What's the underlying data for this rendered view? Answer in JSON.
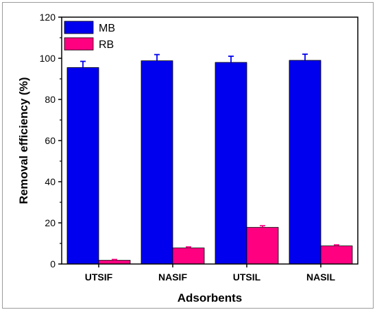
{
  "chart_data": {
    "type": "bar",
    "categories": [
      "UTSIF",
      "NASIF",
      "UTSIL",
      "NASIL"
    ],
    "series": [
      {
        "name": "MB",
        "color": "#0000ee",
        "values": [
          95.5,
          98.8,
          98.0,
          99.0
        ],
        "errors": [
          3.0,
          3.0,
          3.0,
          3.0
        ]
      },
      {
        "name": "RB",
        "color": "#ff0080",
        "values": [
          1.8,
          7.8,
          17.8,
          8.8
        ],
        "errors": [
          0.4,
          0.5,
          0.8,
          0.5
        ]
      }
    ],
    "xlabel": "Adsorbents",
    "ylabel": "Removal efficiency (%)",
    "ylim": [
      0,
      120
    ],
    "yticks": [
      0,
      20,
      40,
      60,
      80,
      100,
      120
    ],
    "grid": false,
    "legend": "top-left"
  }
}
